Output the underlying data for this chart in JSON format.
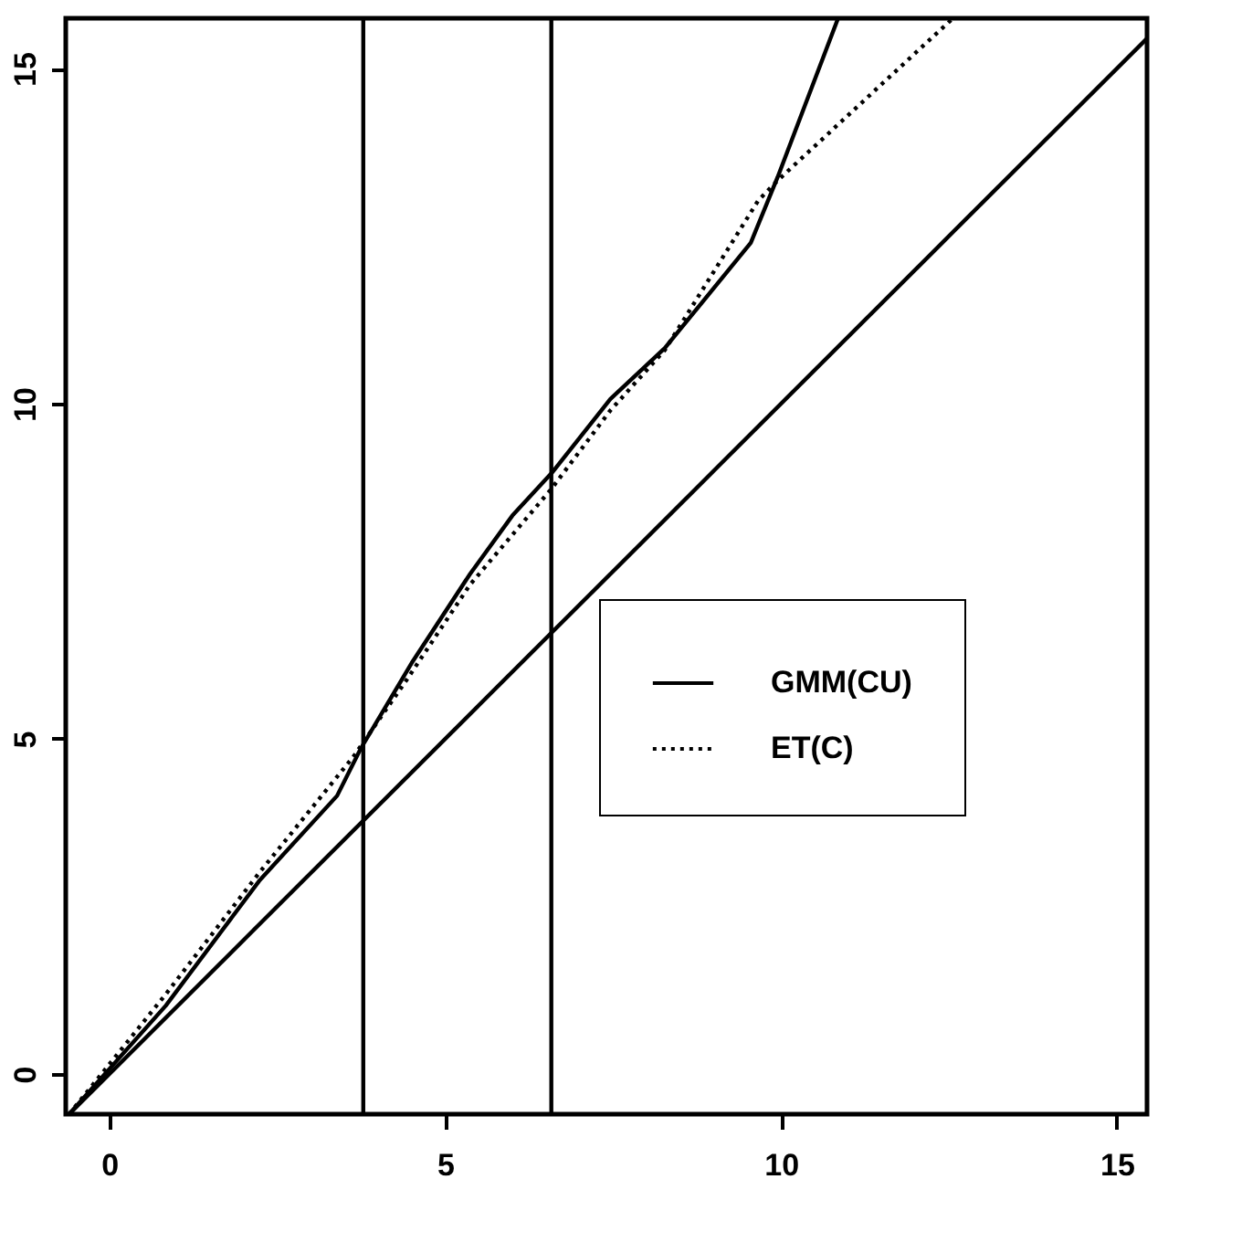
{
  "chart_data": {
    "type": "line",
    "xlim": [
      -0.65,
      15.45
    ],
    "ylim": [
      -0.6,
      15.75
    ],
    "xticks": [
      0,
      5,
      10,
      15
    ],
    "yticks": [
      0,
      5,
      10,
      15
    ],
    "grid": false,
    "legend": "right",
    "marker": "none",
    "series": [
      {
        "name": "GMM(CU)",
        "color": "#000000",
        "line_style": "solid",
        "x": [
          -0.6,
          0.84,
          2.23,
          3.39,
          3.74,
          4.5,
          5.37,
          6.0,
          6.59,
          7.46,
          8.27,
          9.55,
          9.95,
          10.85
        ],
        "values": [
          -0.6,
          1.02,
          2.88,
          4.15,
          4.85,
          6.13,
          7.46,
          8.33,
          8.97,
          10.07,
          10.83,
          12.4,
          13.38,
          15.75
        ]
      },
      {
        "name": "ET(C)",
        "color": "#000000",
        "line_style": "dotted",
        "x": [
          -0.6,
          0.84,
          2.23,
          3.63,
          4.44,
          5.37,
          6.59,
          7.46,
          8.27,
          9.66,
          9.95,
          12.56
        ],
        "values": [
          -0.6,
          1.19,
          3.0,
          4.73,
          5.9,
          7.3,
          8.74,
          9.9,
          10.8,
          13.03,
          13.33,
          15.75
        ]
      },
      {
        "type": "line",
        "color": "#000000",
        "line_style": "solid",
        "x": [
          -0.6,
          15.45
        ],
        "values": [
          -0.6,
          15.45
        ]
      }
    ],
    "ref_lines": [
      {
        "axis": "x",
        "value": 3.78
      },
      {
        "axis": "x",
        "value": 6.58
      }
    ]
  }
}
